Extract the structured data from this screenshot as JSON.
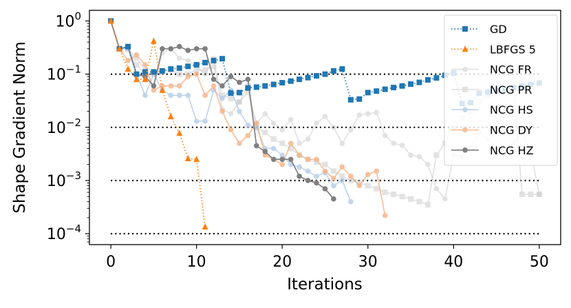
{
  "chart_data": {
    "type": "line",
    "title": "",
    "xlabel": "Iterations",
    "ylabel": "Shape Gradient Norm",
    "yscale": "log",
    "xlim": [
      -2.5,
      52.5
    ],
    "ylim": [
      6.23e-05,
      1.585
    ],
    "xticks": [
      0,
      10,
      20,
      30,
      40,
      50
    ],
    "xtick_labels": [
      "0",
      "10",
      "20",
      "30",
      "40",
      "50"
    ],
    "yticks": [
      {
        "value": 1,
        "base": "10",
        "exp": "0"
      },
      {
        "value": 0.1,
        "base": "10",
        "exp": "−1"
      },
      {
        "value": 0.01,
        "base": "10",
        "exp": "−2"
      },
      {
        "value": 0.001,
        "base": "10",
        "exp": "−3"
      },
      {
        "value": 0.0001,
        "base": "10",
        "exp": "−4"
      }
    ],
    "reference_lines": [
      0.1,
      0.01,
      0.001,
      0.0001
    ],
    "legend_position": "top-right",
    "series": [
      {
        "name": "GD",
        "color": "#1f77b4",
        "linestyle": "dotted",
        "marker": "square",
        "alpha": 1.0,
        "x": [
          0,
          1,
          2,
          3,
          4,
          5,
          6,
          7,
          8,
          9,
          10,
          11,
          12,
          13,
          14,
          15,
          16,
          17,
          18,
          19,
          20,
          21,
          22,
          23,
          24,
          25,
          26,
          27,
          28,
          29,
          30,
          31,
          32,
          33,
          34,
          35,
          36,
          37,
          38,
          39,
          40,
          41,
          42,
          43,
          44,
          45,
          46,
          47,
          48,
          49,
          50
        ],
        "y": [
          1.0,
          0.3,
          0.33,
          0.1,
          0.11,
          0.11,
          0.115,
          0.125,
          0.13,
          0.14,
          0.15,
          0.165,
          0.18,
          0.195,
          0.044,
          0.045,
          0.055,
          0.057,
          0.06,
          0.064,
          0.069,
          0.074,
          0.08,
          0.086,
          0.093,
          0.1,
          0.115,
          0.125,
          0.033,
          0.034,
          0.045,
          0.048,
          0.052,
          0.056,
          0.06,
          0.065,
          0.07,
          0.078,
          0.085,
          0.095,
          0.105,
          0.028,
          0.029,
          0.044,
          0.046,
          0.049,
          0.052,
          0.056,
          0.06,
          0.064,
          0.068
        ]
      },
      {
        "name": "LBFGS 5",
        "color": "#ff7f0e",
        "linestyle": "dotted",
        "marker": "triangle",
        "alpha": 1.0,
        "x": [
          0,
          1,
          2,
          3,
          4,
          5,
          6,
          7,
          8,
          9,
          10,
          11
        ],
        "y": [
          1.0,
          0.3,
          0.125,
          0.08,
          0.08,
          0.42,
          0.05,
          0.016,
          0.0078,
          0.0026,
          0.0025,
          0.000135
        ]
      },
      {
        "name": "NCG FR",
        "color": "#7f7f7f",
        "linestyle": "solid",
        "marker": "circle",
        "alpha": 0.22,
        "x": [
          0,
          1,
          2,
          3,
          4,
          5,
          6,
          7,
          8,
          9,
          10,
          11,
          12,
          13,
          14,
          15,
          16,
          17,
          18,
          19,
          20,
          21,
          22,
          23,
          24,
          25,
          26,
          27,
          28,
          29,
          30,
          31,
          32,
          33,
          34,
          35,
          36,
          37,
          38,
          39,
          40,
          41,
          42,
          43,
          44,
          45,
          46,
          47,
          48,
          49,
          50
        ],
        "y": [
          1.0,
          0.3,
          0.3,
          0.2,
          0.12,
          0.06,
          0.25,
          0.3,
          0.2,
          0.18,
          0.14,
          0.1,
          0.2,
          0.022,
          0.018,
          0.03,
          0.045,
          0.012,
          0.018,
          0.012,
          0.009,
          0.014,
          0.005,
          0.006,
          0.012,
          0.016,
          0.01,
          0.005,
          0.009,
          0.017,
          0.018,
          0.019,
          0.007,
          0.005,
          0.0046,
          0.003,
          0.0028,
          0.002,
          0.0007,
          0.00045,
          0.003,
          0.0028,
          0.004,
          0.008,
          0.006,
          0.003,
          0.003,
          0.005,
          0.008,
          0.0035,
          0.00055
        ]
      },
      {
        "name": "NCG PR",
        "color": "#c7c7c7",
        "linestyle": "solid",
        "marker": "square",
        "alpha": 0.5,
        "x": [
          0,
          1,
          2,
          3,
          4,
          5,
          6,
          7,
          8,
          9,
          10,
          11,
          12,
          13,
          14,
          15,
          16,
          17,
          18,
          19,
          20,
          21,
          22,
          23,
          24,
          25,
          26,
          27,
          28,
          29,
          30,
          31,
          32,
          33,
          34,
          35,
          36,
          37,
          38,
          39,
          40,
          41,
          42,
          43,
          44,
          45,
          46,
          47,
          48,
          49,
          50
        ],
        "y": [
          1.0,
          0.3,
          0.3,
          0.15,
          0.1,
          0.1,
          0.11,
          0.12,
          0.1,
          0.1,
          0.12,
          0.12,
          0.14,
          0.04,
          0.035,
          0.03,
          0.06,
          0.01,
          0.008,
          0.006,
          0.005,
          0.004,
          0.003,
          0.0025,
          0.0022,
          0.002,
          0.0015,
          0.0012,
          0.001,
          0.0009,
          0.0008,
          0.0007,
          0.0006,
          0.00055,
          0.0005,
          0.00045,
          0.0004,
          0.00035,
          0.003,
          0.005,
          0.01,
          0.015,
          0.02,
          0.03,
          0.04,
          0.045,
          0.05,
          0.055,
          0.00055,
          0.00055,
          0.00055
        ]
      },
      {
        "name": "NCG HS",
        "color": "#aec7e8",
        "linestyle": "solid",
        "marker": "circle",
        "alpha": 0.75,
        "x": [
          0,
          1,
          2,
          3,
          4,
          5,
          6,
          7,
          8,
          9,
          10,
          11,
          12,
          13,
          14,
          15,
          16,
          17,
          18,
          19,
          20,
          21,
          22,
          23,
          24,
          25,
          26,
          27,
          28
        ],
        "y": [
          1.0,
          0.3,
          0.3,
          0.1,
          0.04,
          0.1,
          0.05,
          0.04,
          0.04,
          0.04,
          0.013,
          0.013,
          0.05,
          0.035,
          0.05,
          0.02,
          0.011,
          0.01,
          0.004,
          0.004,
          0.003,
          0.002,
          0.0018,
          0.0015,
          0.0012,
          0.0014,
          0.0008,
          0.001,
          0.0004
        ]
      },
      {
        "name": "NCG DY",
        "color": "#f4b183",
        "linestyle": "solid",
        "marker": "circle",
        "alpha": 0.8,
        "x": [
          0,
          1,
          2,
          3,
          4,
          5,
          6,
          7,
          8,
          9,
          10,
          11,
          12,
          13,
          14,
          15,
          16,
          17,
          18,
          19,
          20,
          21,
          22,
          23,
          24,
          25,
          26,
          27,
          28,
          29,
          30,
          31,
          32
        ],
        "y": [
          1.0,
          0.3,
          0.18,
          0.23,
          0.15,
          0.05,
          0.06,
          0.06,
          0.06,
          0.09,
          0.1,
          0.04,
          0.06,
          0.02,
          0.009,
          0.005,
          0.007,
          0.012,
          0.003,
          0.0025,
          0.002,
          0.005,
          0.003,
          0.0025,
          0.0025,
          0.0015,
          0.0011,
          0.0018,
          0.0012,
          0.0008,
          0.0013,
          0.0015,
          0.00022
        ]
      },
      {
        "name": "NCG HZ",
        "color": "#7f7f7f",
        "linestyle": "solid",
        "marker": "circle",
        "alpha": 1.0,
        "x": [
          0,
          1,
          2,
          3,
          4,
          5,
          6,
          7,
          8,
          9,
          10,
          11,
          12,
          13,
          14,
          15,
          16,
          17,
          18,
          19,
          20,
          21,
          22,
          23,
          24,
          25,
          26
        ],
        "y": [
          1.0,
          0.3,
          0.33,
          0.1,
          0.09,
          0.06,
          0.3,
          0.3,
          0.33,
          0.28,
          0.3,
          0.3,
          0.08,
          0.06,
          0.09,
          0.07,
          0.08,
          0.0045,
          0.0035,
          0.0025,
          0.0025,
          0.0025,
          0.0012,
          0.001,
          0.0009,
          0.0007,
          0.00045
        ]
      }
    ]
  }
}
